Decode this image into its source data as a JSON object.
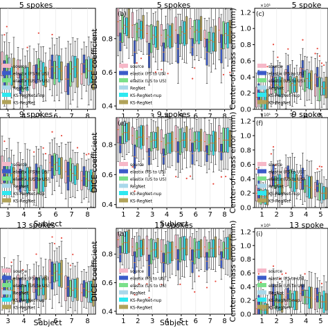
{
  "series_colors": [
    "#f6b8c8",
    "#3b5bc9",
    "#7be08a",
    "#a9d8ea",
    "#2ee8f0",
    "#b1a35a"
  ],
  "legend_items": [
    "source",
    "elastix (FS to US)",
    "elastix (US to US)",
    "RegNet",
    "KS-RegNet-nup",
    "KS-RegNet"
  ],
  "axis_labels": {
    "subject": "Subject",
    "dice": "DICE coefficient",
    "com": "Center-of-mass error (mm)"
  },
  "sci_multiplier": "×10¹",
  "chart_data": [
    {
      "type": "box",
      "label": "",
      "title": "5 spokes",
      "metric": "ADV",
      "xlabel": "Subject",
      "ylabel": "",
      "categories": [
        "3",
        "4",
        "5",
        "6",
        "7",
        "8"
      ],
      "medians": [
        [
          0.45,
          0.4,
          0.32,
          0.4,
          0.3,
          0.35
        ],
        [
          0.35,
          0.25,
          0.35,
          0.42,
          0.3,
          0.45
        ],
        [
          0.38,
          0.3,
          0.4,
          0.36,
          0.35,
          0.4
        ],
        [
          0.4,
          0.32,
          0.38,
          0.42,
          0.4,
          0.38
        ],
        [
          0.33,
          0.3,
          0.35,
          0.4,
          0.42,
          0.38
        ],
        [
          0.36,
          0.35,
          0.32,
          0.38,
          0.36,
          0.35
        ]
      ]
    },
    {
      "type": "box",
      "label": "(b)",
      "title": "5 spokes",
      "metric": "DICE",
      "xlabel": "Subject",
      "ylabel": "DICE coefficient",
      "categories": [
        "1",
        "2",
        "3",
        "4",
        "5",
        "6",
        "7",
        "8"
      ],
      "ylim": [
        0.38,
        0.98
      ],
      "yticks": [
        0.4,
        0.6,
        0.8
      ],
      "medians": [
        [
          0.9,
          0.88,
          0.83,
          0.82,
          0.85,
          0.86,
          0.8,
          0.85
        ],
        [
          0.78,
          0.72,
          0.7,
          0.72,
          0.74,
          0.75,
          0.72,
          0.74
        ],
        [
          0.86,
          0.84,
          0.8,
          0.8,
          0.82,
          0.84,
          0.78,
          0.82
        ],
        [
          0.88,
          0.86,
          0.82,
          0.82,
          0.84,
          0.85,
          0.79,
          0.83
        ],
        [
          0.87,
          0.85,
          0.81,
          0.81,
          0.83,
          0.84,
          0.78,
          0.82
        ],
        [
          0.89,
          0.87,
          0.82,
          0.82,
          0.85,
          0.86,
          0.8,
          0.84
        ]
      ]
    },
    {
      "type": "box",
      "label": "(c)",
      "title": "5 spoke",
      "metric": "COM",
      "xlabel": "",
      "ylabel": "Center-of-mass error (mm)",
      "categories": [
        "1",
        "2",
        "3",
        "4",
        "5"
      ],
      "ylim": [
        0,
        1.25
      ],
      "yticks": [
        0.0,
        0.2,
        0.4,
        0.6,
        0.8,
        1.0,
        1.2
      ],
      "medians": [
        [
          0.15,
          0.3,
          0.35,
          0.4,
          0.3
        ],
        [
          0.2,
          0.4,
          0.45,
          0.5,
          0.4
        ],
        [
          0.12,
          0.3,
          0.3,
          0.35,
          0.25
        ],
        [
          0.1,
          0.3,
          0.32,
          0.38,
          0.28
        ],
        [
          0.11,
          0.28,
          0.3,
          0.35,
          0.26
        ],
        [
          0.1,
          0.29,
          0.31,
          0.36,
          0.27
        ]
      ]
    },
    {
      "type": "box",
      "label": "",
      "title": "9 spokes",
      "metric": "ADV",
      "xlabel": "Subject",
      "ylabel": "",
      "categories": [
        "3",
        "4",
        "5",
        "6",
        "7",
        "8"
      ],
      "medians": [
        [
          0.42,
          0.35,
          0.3,
          0.5,
          0.4,
          0.3
        ],
        [
          0.38,
          0.3,
          0.35,
          0.45,
          0.35,
          0.35
        ],
        [
          0.36,
          0.32,
          0.3,
          0.48,
          0.42,
          0.32
        ],
        [
          0.4,
          0.34,
          0.32,
          0.5,
          0.38,
          0.3
        ],
        [
          0.38,
          0.3,
          0.3,
          0.46,
          0.36,
          0.3
        ],
        [
          0.35,
          0.32,
          0.32,
          0.44,
          0.4,
          0.28
        ]
      ]
    },
    {
      "type": "box",
      "label": "(e)",
      "title": "9 spokes",
      "metric": "DICE",
      "xlabel": "Subject",
      "ylabel": "DICE coefficient",
      "categories": [
        "1",
        "2",
        "3",
        "4",
        "5",
        "6",
        "7",
        "8"
      ],
      "ylim": [
        0.38,
        0.98
      ],
      "yticks": [
        0.4,
        0.6,
        0.8
      ],
      "medians": [
        [
          0.9,
          0.86,
          0.84,
          0.82,
          0.84,
          0.83,
          0.82,
          0.84
        ],
        [
          0.8,
          0.72,
          0.72,
          0.72,
          0.75,
          0.74,
          0.74,
          0.75
        ],
        [
          0.87,
          0.84,
          0.82,
          0.8,
          0.82,
          0.82,
          0.8,
          0.83
        ],
        [
          0.88,
          0.85,
          0.83,
          0.81,
          0.83,
          0.83,
          0.81,
          0.83
        ],
        [
          0.88,
          0.85,
          0.83,
          0.81,
          0.83,
          0.82,
          0.81,
          0.83
        ],
        [
          0.89,
          0.86,
          0.84,
          0.82,
          0.84,
          0.83,
          0.82,
          0.84
        ]
      ]
    },
    {
      "type": "box",
      "label": "(f)",
      "title": "9 spoke",
      "metric": "COM",
      "xlabel": "",
      "ylabel": "Center-of-mass error (mm)",
      "categories": [
        "1",
        "2",
        "3",
        "4",
        "5"
      ],
      "ylim": [
        0,
        1.25
      ],
      "yticks": [
        0.0,
        0.2,
        0.4,
        0.6,
        0.8,
        1.0,
        1.2
      ],
      "medians": [
        [
          0.2,
          0.4,
          0.42,
          0.35,
          0.25
        ],
        [
          0.25,
          0.45,
          0.5,
          0.4,
          0.3
        ],
        [
          0.15,
          0.35,
          0.4,
          0.3,
          0.22
        ],
        [
          0.15,
          0.32,
          0.38,
          0.3,
          0.2
        ],
        [
          0.15,
          0.32,
          0.36,
          0.28,
          0.2
        ],
        [
          0.14,
          0.3,
          0.36,
          0.28,
          0.2
        ]
      ]
    },
    {
      "type": "box",
      "label": "",
      "title": "13 spokes",
      "metric": "ADV",
      "xlabel": "Subject",
      "ylabel": "",
      "categories": [
        "3",
        "4",
        "5",
        "6",
        "7",
        "8"
      ],
      "medians": [
        [
          0.3,
          0.3,
          0.35,
          0.5,
          0.3,
          0.25
        ],
        [
          0.32,
          0.28,
          0.3,
          0.45,
          0.32,
          0.3
        ],
        [
          0.3,
          0.25,
          0.32,
          0.48,
          0.3,
          0.28
        ],
        [
          0.28,
          0.25,
          0.3,
          0.5,
          0.28,
          0.26
        ],
        [
          0.28,
          0.26,
          0.32,
          0.46,
          0.3,
          0.26
        ],
        [
          0.27,
          0.25,
          0.31,
          0.47,
          0.29,
          0.25
        ]
      ]
    },
    {
      "type": "box",
      "label": "(h)",
      "title": "13 spokes",
      "metric": "DICE",
      "xlabel": "Subject",
      "ylabel": "DICE coefficient",
      "categories": [
        "1",
        "2",
        "3",
        "4",
        "5",
        "6",
        "7",
        "8"
      ],
      "ylim": [
        0.38,
        0.98
      ],
      "yticks": [
        0.4,
        0.6,
        0.8
      ],
      "medians": [
        [
          0.9,
          0.85,
          0.84,
          0.82,
          0.85,
          0.84,
          0.85,
          0.85
        ],
        [
          0.8,
          0.74,
          0.72,
          0.74,
          0.76,
          0.75,
          0.75,
          0.76
        ],
        [
          0.87,
          0.83,
          0.82,
          0.8,
          0.83,
          0.82,
          0.83,
          0.83
        ],
        [
          0.88,
          0.84,
          0.83,
          0.81,
          0.84,
          0.83,
          0.84,
          0.84
        ],
        [
          0.88,
          0.84,
          0.83,
          0.81,
          0.84,
          0.83,
          0.84,
          0.84
        ],
        [
          0.89,
          0.85,
          0.84,
          0.82,
          0.85,
          0.84,
          0.85,
          0.85
        ]
      ]
    },
    {
      "type": "box",
      "label": "(i)",
      "title": "13 spoke",
      "metric": "COM",
      "xlabel": "",
      "ylabel": "Center-of-mass error (mm)",
      "categories": [
        "1",
        "2",
        "3",
        "4",
        "5"
      ],
      "ylim": [
        0,
        1.25
      ],
      "yticks": [
        0.0,
        0.2,
        0.4,
        0.6,
        0.8,
        1.0,
        1.2
      ],
      "medians": [
        [
          0.08,
          0.2,
          0.25,
          0.3,
          0.22
        ],
        [
          0.12,
          0.28,
          0.3,
          0.35,
          0.28
        ],
        [
          0.07,
          0.18,
          0.22,
          0.25,
          0.2
        ],
        [
          0.06,
          0.17,
          0.2,
          0.25,
          0.18
        ],
        [
          0.06,
          0.17,
          0.2,
          0.24,
          0.18
        ],
        [
          0.06,
          0.16,
          0.2,
          0.24,
          0.18
        ]
      ]
    }
  ]
}
